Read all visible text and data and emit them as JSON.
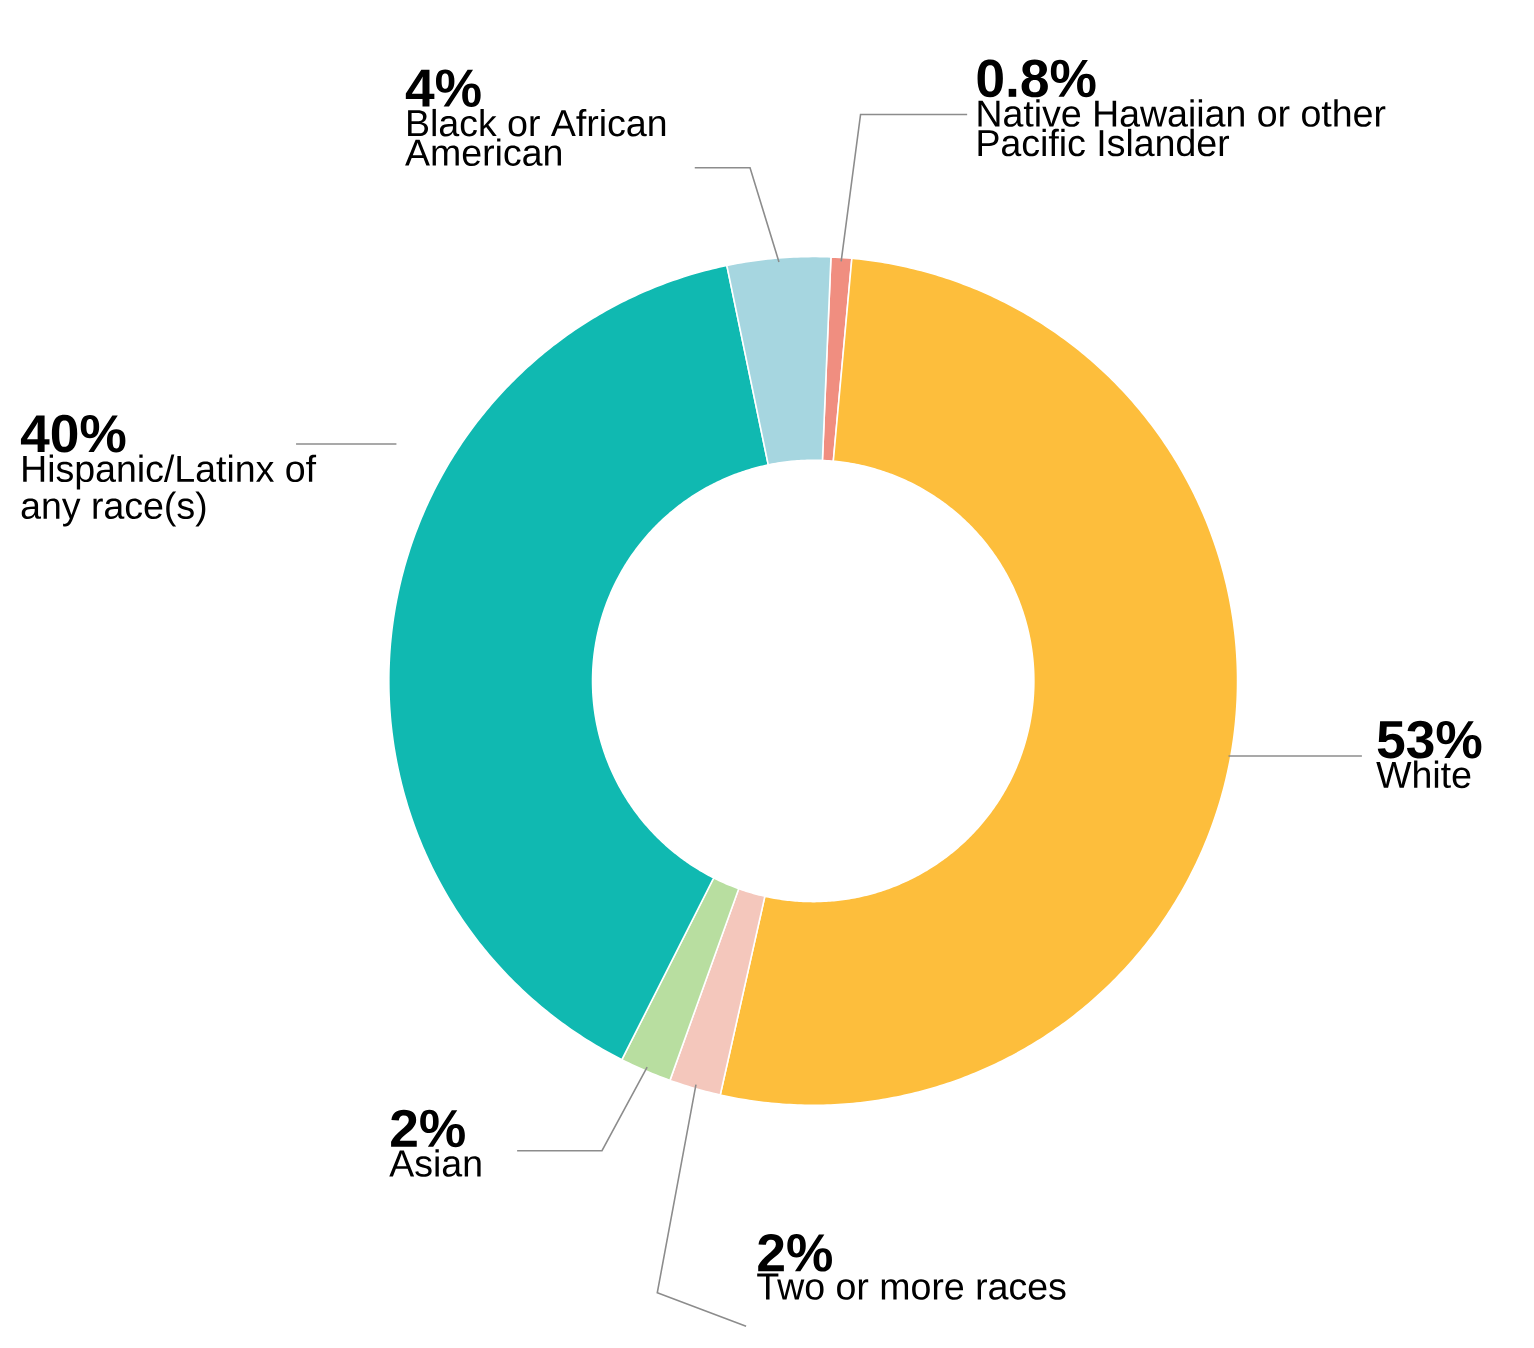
{
  "chart_data": {
    "type": "donut",
    "categories": [
      "Native Hawaiian or other Pacific Islander",
      "White",
      "Two or more races",
      "Asian",
      "Hispanic/Latinx of any race(s)",
      "Black or African American"
    ],
    "values": [
      0.8,
      53,
      2,
      2,
      40,
      4
    ],
    "value_labels": [
      "0.8%",
      "53%",
      "2%",
      "2%",
      "40%",
      "4%"
    ],
    "colors": [
      "#f08e80",
      "#fdbe3c",
      "#f4c7bc",
      "#b8dea0",
      "#10b9b1",
      "#a6d6e0"
    ]
  }
}
